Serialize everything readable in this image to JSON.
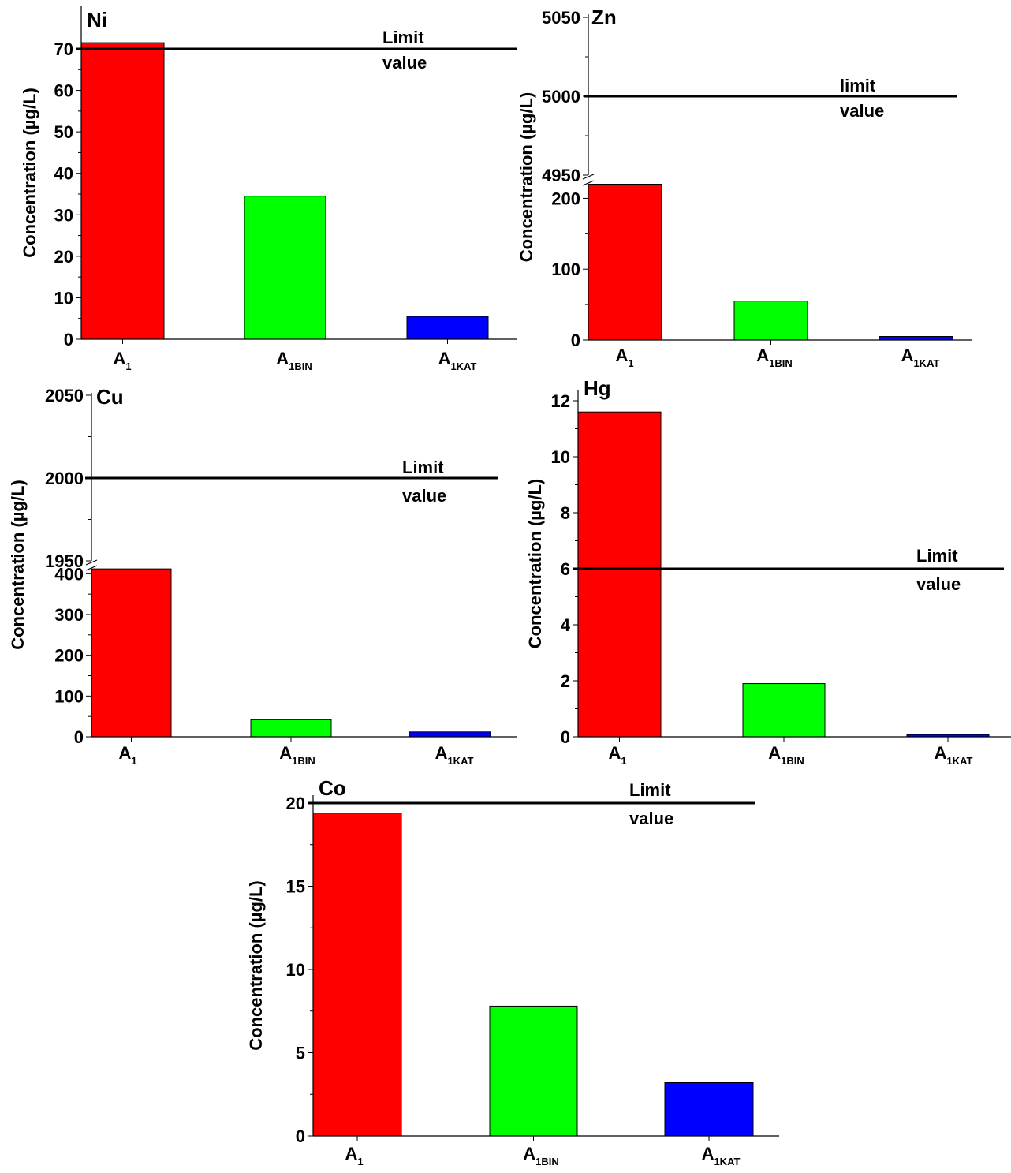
{
  "chart_data": [
    {
      "type": "bar",
      "title": "Ni",
      "ylabel": "Concentration (µg/L)",
      "categories": [
        {
          "main": "A",
          "sub": "1"
        },
        {
          "main": "A",
          "sub": "1BIN"
        },
        {
          "main": "A",
          "sub": "1KAT"
        }
      ],
      "values": [
        71.5,
        34.5,
        5.5
      ],
      "colors": [
        "#ff0000",
        "#00ff00",
        "#0000ff"
      ],
      "ylim": [
        0,
        75
      ],
      "yticks": [
        0,
        10,
        20,
        30,
        40,
        50,
        60,
        70
      ],
      "limit": {
        "value": 70,
        "label_line1": "Limit",
        "label_line2": "value"
      }
    },
    {
      "type": "bar",
      "title": "Zn",
      "ylabel": "Concentration (µg/L)",
      "axis_break": {
        "lower": [
          0,
          225
        ],
        "upper": [
          4950,
          5050
        ]
      },
      "categories": [
        {
          "main": "A",
          "sub": "1"
        },
        {
          "main": "A",
          "sub": "1BIN"
        },
        {
          "main": "A",
          "sub": "1KAT"
        }
      ],
      "values": [
        220,
        55,
        5
      ],
      "colors": [
        "#ff0000",
        "#00ff00",
        "#0000ff"
      ],
      "yticks_lower": [
        0,
        100,
        200
      ],
      "yticks_upper": [
        4950,
        5000,
        5050
      ],
      "limit": {
        "value": 5000,
        "label_line1": "limit",
        "label_line2": "value"
      }
    },
    {
      "type": "bar",
      "title": "Cu",
      "ylabel": "Concentration (µg/L)",
      "axis_break": {
        "lower": [
          0,
          420
        ],
        "upper": [
          1950,
          2050
        ]
      },
      "categories": [
        {
          "main": "A",
          "sub": "1"
        },
        {
          "main": "A",
          "sub": "1BIN"
        },
        {
          "main": "A",
          "sub": "1KAT"
        }
      ],
      "values": [
        412,
        42,
        12
      ],
      "colors": [
        "#ff0000",
        "#00ff00",
        "#0000ff"
      ],
      "yticks_lower": [
        0,
        100,
        200,
        300,
        400
      ],
      "yticks_upper": [
        1950,
        2000,
        2050
      ],
      "limit": {
        "value": 2000,
        "label_line1": "Limit",
        "label_line2": "value"
      }
    },
    {
      "type": "bar",
      "title": "Hg",
      "ylabel": "Concentration (µg/L)",
      "categories": [
        {
          "main": "A",
          "sub": "1"
        },
        {
          "main": "A",
          "sub": "1BIN"
        },
        {
          "main": "A",
          "sub": "1KAT"
        }
      ],
      "values": [
        11.6,
        1.9,
        0.08
      ],
      "colors": [
        "#ff0000",
        "#00ff00",
        "#0000ff"
      ],
      "ylim": [
        0,
        12.5
      ],
      "yticks": [
        0,
        2,
        4,
        6,
        8,
        10,
        12
      ],
      "limit": {
        "value": 6,
        "label_line1": "Limit",
        "label_line2": "value"
      }
    },
    {
      "type": "bar",
      "title": "Co",
      "ylabel": "Concentration (µg/L)",
      "categories": [
        {
          "main": "A",
          "sub": "1"
        },
        {
          "main": "A",
          "sub": "1BIN"
        },
        {
          "main": "A",
          "sub": "1KAT"
        }
      ],
      "values": [
        19.4,
        7.8,
        3.2
      ],
      "colors": [
        "#ff0000",
        "#00ff00",
        "#0000ff"
      ],
      "ylim": [
        0,
        20
      ],
      "yticks": [
        0,
        5,
        10,
        15,
        20
      ],
      "limit": {
        "value": 20,
        "label_line1": "Limit",
        "label_line2": "value"
      }
    }
  ]
}
